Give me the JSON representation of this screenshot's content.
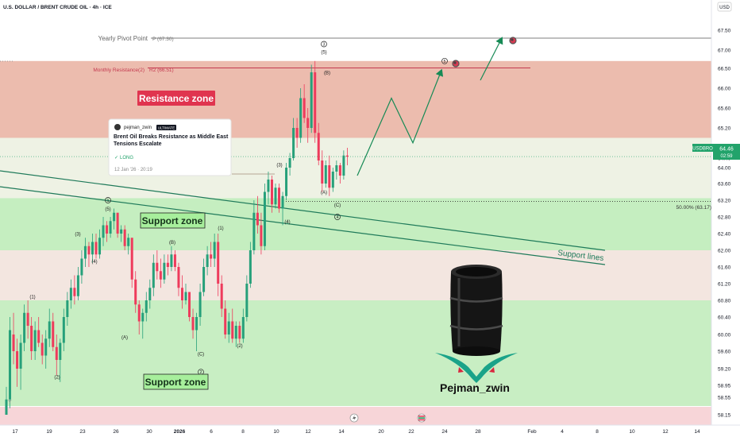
{
  "header": {
    "title": "U.S. DOLLAR / BRENT CRUDE OIL · 4h · ICE"
  },
  "axis": {
    "currency": "USD"
  },
  "ticker": {
    "symbol": "USDBRO",
    "price": "64.46",
    "countdown": "02:59"
  },
  "levels": {
    "pivot_label": "Yearly Pivot Point",
    "pivot_tag": "P (67.30)",
    "monthly_label": "Monthly Resistance(2)",
    "monthly_tag": "R2 (66.51)",
    "fib_label": "50.00% (63.17)"
  },
  "zones": {
    "resistance": "Resistance zone",
    "support_upper": "Support zone",
    "support_lower": "Support zone",
    "support_lines": "Support lines"
  },
  "idea_card": {
    "author": "pejman_zwin",
    "badge": "ULTIMATE",
    "title": "Brent Oil Breaks Resistance as Middle East Tensions Escalate",
    "direction": "LONG",
    "timestamp": "12 Jan '26 · 20:19"
  },
  "brand": {
    "name": "Pejman_zwin"
  },
  "y_marker": "Y",
  "wave_labels": [
    {
      "text": "(1)",
      "x": 41,
      "price": 60.85
    },
    {
      "text": "(2)",
      "x": 72,
      "price": 59.05
    },
    {
      "text": "(3)",
      "x": 98,
      "price": 62.35
    },
    {
      "text": "(4)",
      "x": 119,
      "price": 61.7
    },
    {
      "text": "(5)",
      "x": 136,
      "price": 62.95
    },
    {
      "text": "(A)",
      "x": 157,
      "price": 59.9
    },
    {
      "text": "(B)",
      "x": 217,
      "price": 62.15
    },
    {
      "text": "(C)",
      "x": 253,
      "price": 59.5
    },
    {
      "text": "(1)",
      "x": 278,
      "price": 62.5
    },
    {
      "text": "(2)",
      "x": 302,
      "price": 59.7
    },
    {
      "text": "(3)",
      "x": 352,
      "price": 64.05
    },
    {
      "text": "(4)",
      "x": 362,
      "price": 62.65
    },
    {
      "text": "(5)",
      "x": 408,
      "price": 66.9
    },
    {
      "text": "(A)",
      "x": 408,
      "price": 63.35
    },
    {
      "text": "(B)",
      "x": 412,
      "price": 66.35
    },
    {
      "text": "(C)",
      "x": 425,
      "price": 63.05
    }
  ],
  "circle_labels": [
    {
      "text": "1",
      "x": 136,
      "price": 63.2
    },
    {
      "text": "2",
      "x": 253,
      "price": 59.15
    },
    {
      "text": "3",
      "x": 408,
      "price": 67.15
    },
    {
      "text": "4",
      "x": 425,
      "price": 62.8
    },
    {
      "text": "5",
      "x": 560,
      "price": 66.7
    }
  ],
  "chart_data": {
    "type": "candlestick",
    "instrument": "U.S. DOLLAR / BRENT CRUDE OIL",
    "timeframe": "4h",
    "y_ticks": [
      "58.15",
      "58.55",
      "58.95",
      "59.20",
      "59.60",
      "60.00",
      "60.40",
      "60.80",
      "61.20",
      "61.60",
      "62.00",
      "62.40",
      "62.80",
      "63.20",
      "63.60",
      "64.00",
      "64.40",
      "64.80",
      "65.20",
      "65.60",
      "66.00",
      "66.50",
      "67.00",
      "67.50"
    ],
    "x_ticks": [
      {
        "label": "17",
        "x": 19
      },
      {
        "label": "19",
        "x": 62
      },
      {
        "label": "23",
        "x": 104
      },
      {
        "label": "26",
        "x": 146
      },
      {
        "label": "30",
        "x": 188
      },
      {
        "label": "2026",
        "x": 226
      },
      {
        "label": "6",
        "x": 266
      },
      {
        "label": "8",
        "x": 306
      },
      {
        "label": "10",
        "x": 348
      },
      {
        "label": "12",
        "x": 388
      },
      {
        "label": "14",
        "x": 430
      },
      {
        "label": "20",
        "x": 480
      },
      {
        "label": "22",
        "x": 518
      },
      {
        "label": "24",
        "x": 560
      },
      {
        "label": "28",
        "x": 602
      },
      {
        "label": "Feb",
        "x": 670
      },
      {
        "label": "4",
        "x": 708
      },
      {
        "label": "8",
        "x": 752
      },
      {
        "label": "10",
        "x": 796
      },
      {
        "label": "12",
        "x": 838
      },
      {
        "label": "14",
        "x": 878
      }
    ],
    "levels": {
      "yearly_pivot": 67.3,
      "monthly_resistance_r2": 66.51,
      "fib_50": 63.17,
      "last_price": 64.46
    },
    "zones": [
      {
        "name": "Resistance zone",
        "from": 65.0,
        "to": 66.7
      },
      {
        "name": "Support zone",
        "from": 62.0,
        "to": 63.25
      },
      {
        "name": "Support zone",
        "from": 58.35,
        "to": 60.8
      }
    ],
    "candles": [
      [
        57.9,
        58.9,
        57.4,
        58.5
      ],
      [
        58.5,
        60.4,
        58.3,
        60.1
      ],
      [
        60.0,
        60.5,
        59.3,
        59.6
      ],
      [
        59.6,
        59.9,
        58.9,
        59.2
      ],
      [
        59.2,
        60.0,
        58.8,
        59.8
      ],
      [
        59.8,
        60.7,
        59.6,
        60.5
      ],
      [
        60.5,
        60.8,
        59.9,
        60.2
      ],
      [
        60.2,
        60.4,
        59.4,
        59.6
      ],
      [
        59.6,
        60.3,
        59.4,
        60.1
      ],
      [
        60.1,
        60.4,
        59.7,
        59.8
      ],
      [
        59.8,
        60.0,
        59.3,
        59.5
      ],
      [
        59.5,
        60.1,
        59.2,
        59.9
      ],
      [
        59.9,
        60.6,
        59.7,
        60.3
      ],
      [
        60.3,
        60.5,
        59.6,
        59.7
      ],
      [
        59.7,
        60.0,
        59.1,
        59.4
      ],
      [
        59.4,
        59.9,
        59.0,
        59.8
      ],
      [
        59.8,
        60.6,
        59.6,
        60.4
      ],
      [
        60.4,
        61.0,
        60.2,
        60.8
      ],
      [
        60.8,
        61.3,
        60.6,
        61.1
      ],
      [
        61.1,
        61.4,
        60.7,
        60.9
      ],
      [
        60.9,
        61.6,
        60.8,
        61.4
      ],
      [
        61.4,
        62.0,
        61.2,
        61.8
      ],
      [
        61.8,
        62.3,
        61.6,
        62.1
      ],
      [
        62.1,
        62.2,
        61.6,
        61.9
      ],
      [
        61.9,
        62.4,
        61.7,
        62.2
      ],
      [
        62.2,
        62.4,
        61.8,
        61.9
      ],
      [
        61.9,
        62.5,
        61.8,
        62.3
      ],
      [
        62.3,
        62.8,
        62.1,
        62.6
      ],
      [
        62.6,
        62.7,
        62.2,
        62.4
      ],
      [
        62.4,
        62.8,
        62.3,
        62.7
      ],
      [
        62.7,
        63.0,
        62.5,
        62.9
      ],
      [
        62.9,
        62.9,
        62.3,
        62.4
      ],
      [
        62.4,
        62.6,
        62.2,
        62.5
      ],
      [
        62.5,
        62.6,
        62.0,
        62.1
      ],
      [
        62.1,
        62.4,
        61.9,
        62.3
      ],
      [
        62.3,
        62.3,
        61.1,
        61.3
      ],
      [
        61.3,
        61.5,
        60.5,
        60.7
      ],
      [
        60.7,
        60.8,
        60.0,
        60.3
      ],
      [
        60.3,
        60.6,
        59.9,
        60.5
      ],
      [
        60.5,
        61.0,
        60.3,
        60.8
      ],
      [
        60.8,
        61.3,
        60.6,
        61.1
      ],
      [
        61.1,
        61.9,
        60.9,
        61.7
      ],
      [
        61.7,
        62.0,
        61.3,
        61.5
      ],
      [
        61.5,
        61.8,
        61.1,
        61.3
      ],
      [
        61.3,
        61.9,
        61.2,
        61.7
      ],
      [
        61.7,
        61.9,
        61.4,
        61.6
      ],
      [
        61.6,
        62.1,
        61.5,
        61.9
      ],
      [
        61.9,
        62.0,
        61.5,
        61.6
      ],
      [
        61.6,
        61.7,
        60.9,
        61.1
      ],
      [
        61.1,
        61.4,
        60.6,
        60.8
      ],
      [
        60.8,
        61.2,
        60.7,
        61.0
      ],
      [
        61.0,
        61.0,
        60.3,
        60.4
      ],
      [
        60.4,
        60.6,
        59.9,
        60.1
      ],
      [
        60.1,
        60.5,
        59.6,
        60.4
      ],
      [
        60.4,
        61.2,
        60.2,
        61.0
      ],
      [
        61.0,
        61.8,
        60.9,
        61.6
      ],
      [
        61.6,
        62.1,
        61.4,
        61.9
      ],
      [
        61.9,
        62.2,
        61.6,
        61.8
      ],
      [
        61.8,
        62.4,
        61.6,
        62.2
      ],
      [
        62.2,
        62.4,
        60.9,
        61.2
      ],
      [
        61.2,
        61.4,
        60.4,
        60.6
      ],
      [
        60.6,
        60.8,
        59.9,
        60.0
      ],
      [
        60.0,
        60.5,
        59.8,
        60.3
      ],
      [
        60.3,
        60.6,
        59.8,
        59.9
      ],
      [
        59.9,
        60.3,
        59.7,
        60.2
      ],
      [
        60.2,
        60.3,
        59.8,
        59.9
      ],
      [
        59.9,
        60.6,
        59.8,
        60.4
      ],
      [
        60.4,
        61.4,
        60.3,
        61.2
      ],
      [
        61.2,
        62.2,
        61.1,
        62.0
      ],
      [
        62.0,
        63.2,
        61.9,
        62.9
      ],
      [
        62.9,
        63.3,
        62.4,
        62.6
      ],
      [
        62.6,
        62.9,
        61.9,
        62.1
      ],
      [
        62.1,
        63.6,
        62.0,
        63.4
      ],
      [
        63.4,
        63.9,
        63.1,
        63.7
      ],
      [
        63.7,
        63.8,
        62.9,
        63.1
      ],
      [
        63.1,
        63.6,
        63.0,
        63.5
      ],
      [
        63.5,
        63.6,
        62.9,
        63.0
      ],
      [
        63.0,
        63.4,
        62.6,
        63.3
      ],
      [
        63.3,
        64.2,
        63.2,
        64.0
      ],
      [
        64.0,
        64.6,
        63.8,
        64.4
      ],
      [
        64.4,
        65.4,
        64.3,
        65.2
      ],
      [
        65.2,
        65.4,
        64.8,
        65.0
      ],
      [
        65.0,
        66.0,
        64.9,
        65.8
      ],
      [
        65.8,
        66.1,
        65.3,
        65.4
      ],
      [
        65.4,
        65.6,
        64.9,
        65.2
      ],
      [
        65.2,
        66.6,
        65.1,
        66.4
      ],
      [
        66.4,
        66.7,
        64.9,
        65.1
      ],
      [
        65.1,
        65.3,
        64.1,
        64.3
      ],
      [
        64.3,
        64.7,
        63.4,
        63.6
      ],
      [
        63.6,
        64.3,
        63.5,
        64.1
      ],
      [
        64.1,
        64.5,
        63.3,
        63.5
      ],
      [
        63.5,
        64.0,
        63.4,
        63.9
      ],
      [
        63.9,
        64.3,
        63.7,
        64.1
      ],
      [
        64.1,
        64.2,
        63.6,
        63.8
      ],
      [
        63.8,
        64.7,
        63.7,
        64.5
      ],
      [
        64.5,
        64.8,
        64.1,
        64.46
      ]
    ],
    "forecast_path": [
      {
        "x": 450,
        "price": 63.8
      },
      {
        "x": 493,
        "price": 65.8
      },
      {
        "x": 520,
        "price": 64.9
      },
      {
        "x": 556,
        "price": 66.45
      }
    ],
    "forecast_path_2": [
      {
        "x": 605,
        "price": 66.2
      },
      {
        "x": 632,
        "price": 67.3
      }
    ]
  }
}
